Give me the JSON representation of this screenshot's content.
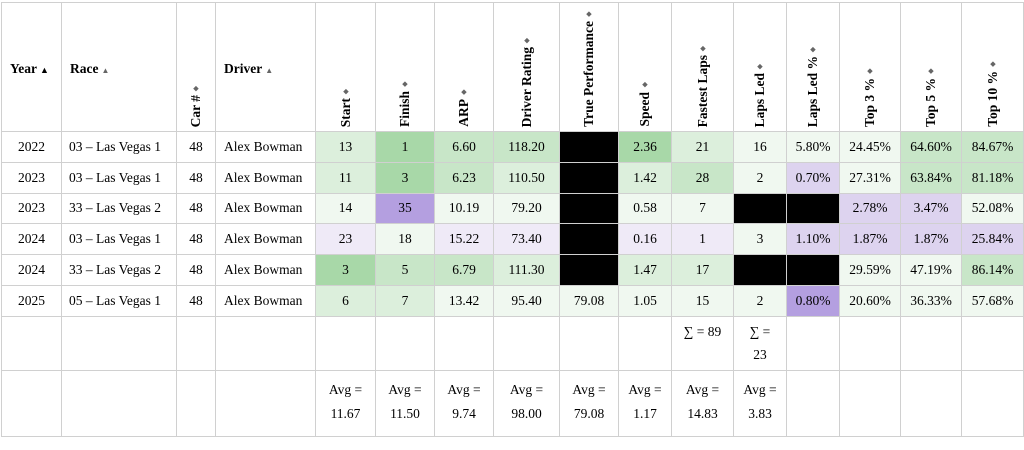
{
  "headers": [
    {
      "label": "Year",
      "sort": "▲",
      "active": true
    },
    {
      "label": "Race",
      "sort": "▲",
      "active": false
    },
    {
      "label": "Car #",
      "sort": "⬥",
      "active": false
    },
    {
      "label": "Driver",
      "sort": "▲",
      "active": false
    },
    {
      "label": "Start",
      "sort": "⬥",
      "active": false
    },
    {
      "label": "Finish",
      "sort": "⬥",
      "active": false
    },
    {
      "label": "ARP",
      "sort": "⬥",
      "active": false
    },
    {
      "label": "Driver Rating",
      "sort": "⬥",
      "active": false
    },
    {
      "label": "True Performance",
      "sort": "⬥",
      "active": false
    },
    {
      "label": "Speed",
      "sort": "⬥",
      "active": false
    },
    {
      "label": "Fastest Laps",
      "sort": "⬥",
      "active": false
    },
    {
      "label": "Laps Led",
      "sort": "⬥",
      "active": false
    },
    {
      "label": "Laps Led %",
      "sort": "⬥",
      "active": false
    },
    {
      "label": "Top 3 %",
      "sort": "⬥",
      "active": false
    },
    {
      "label": "Top 5 %",
      "sort": "⬥",
      "active": false
    },
    {
      "label": "Top 10 %",
      "sort": "⬥",
      "active": false
    }
  ],
  "rows": [
    {
      "year": "2022",
      "race": "03 – Las Vegas 1",
      "car": "48",
      "driver": "Alex Bowman",
      "start": "13",
      "finish": "1",
      "arp": "6.60",
      "rating": "118.20",
      "tp": "",
      "speed": "2.36",
      "fastest": "21",
      "led": "16",
      "ledpct": "5.80%",
      "top3": "24.45%",
      "top5": "64.60%",
      "top10": "84.67%"
    },
    {
      "year": "2023",
      "race": "03 – Las Vegas 1",
      "car": "48",
      "driver": "Alex Bowman",
      "start": "11",
      "finish": "3",
      "arp": "6.23",
      "rating": "110.50",
      "tp": "",
      "speed": "1.42",
      "fastest": "28",
      "led": "2",
      "ledpct": "0.70%",
      "top3": "27.31%",
      "top5": "63.84%",
      "top10": "81.18%"
    },
    {
      "year": "2023",
      "race": "33 – Las Vegas 2",
      "car": "48",
      "driver": "Alex Bowman",
      "start": "14",
      "finish": "35",
      "arp": "10.19",
      "rating": "79.20",
      "tp": "",
      "speed": "0.58",
      "fastest": "7",
      "led": "",
      "ledpct": "",
      "top3": "2.78%",
      "top5": "3.47%",
      "top10": "52.08%"
    },
    {
      "year": "2024",
      "race": "03 – Las Vegas 1",
      "car": "48",
      "driver": "Alex Bowman",
      "start": "23",
      "finish": "18",
      "arp": "15.22",
      "rating": "73.40",
      "tp": "",
      "speed": "0.16",
      "fastest": "1",
      "led": "3",
      "ledpct": "1.10%",
      "top3": "1.87%",
      "top5": "1.87%",
      "top10": "25.84%"
    },
    {
      "year": "2024",
      "race": "33 – Las Vegas 2",
      "car": "48",
      "driver": "Alex Bowman",
      "start": "3",
      "finish": "5",
      "arp": "6.79",
      "rating": "111.30",
      "tp": "",
      "speed": "1.47",
      "fastest": "17",
      "led": "",
      "ledpct": "",
      "top3": "29.59%",
      "top5": "47.19%",
      "top10": "86.14%"
    },
    {
      "year": "2025",
      "race": "05 – Las Vegas 1",
      "car": "48",
      "driver": "Alex Bowman",
      "start": "6",
      "finish": "7",
      "arp": "13.42",
      "rating": "95.40",
      "tp": "79.08",
      "speed": "1.05",
      "fastest": "15",
      "led": "2",
      "ledpct": "0.80%",
      "top3": "20.60%",
      "top5": "36.33%",
      "top10": "57.68%"
    }
  ],
  "totals": {
    "fastest_line1": "∑ = 89",
    "led_line1": "∑ =",
    "led_line2": "23"
  },
  "averages": {
    "label": "Avg =",
    "start": "11.67",
    "finish": "11.50",
    "arp": "9.74",
    "rating": "98.00",
    "tp": "79.08",
    "speed": "1.17",
    "fastest": "14.83",
    "led": "3.83"
  },
  "colors": {
    "light_green": "#f0f8f0",
    "pale_green": "#dcefdc",
    "green": "#c8e6c8",
    "strong_green": "#a8d8a8",
    "light_purple": "#efeaf7",
    "pale_purple": "#ddd3ef",
    "purple": "#b49fe0",
    "missing": "#000000"
  }
}
